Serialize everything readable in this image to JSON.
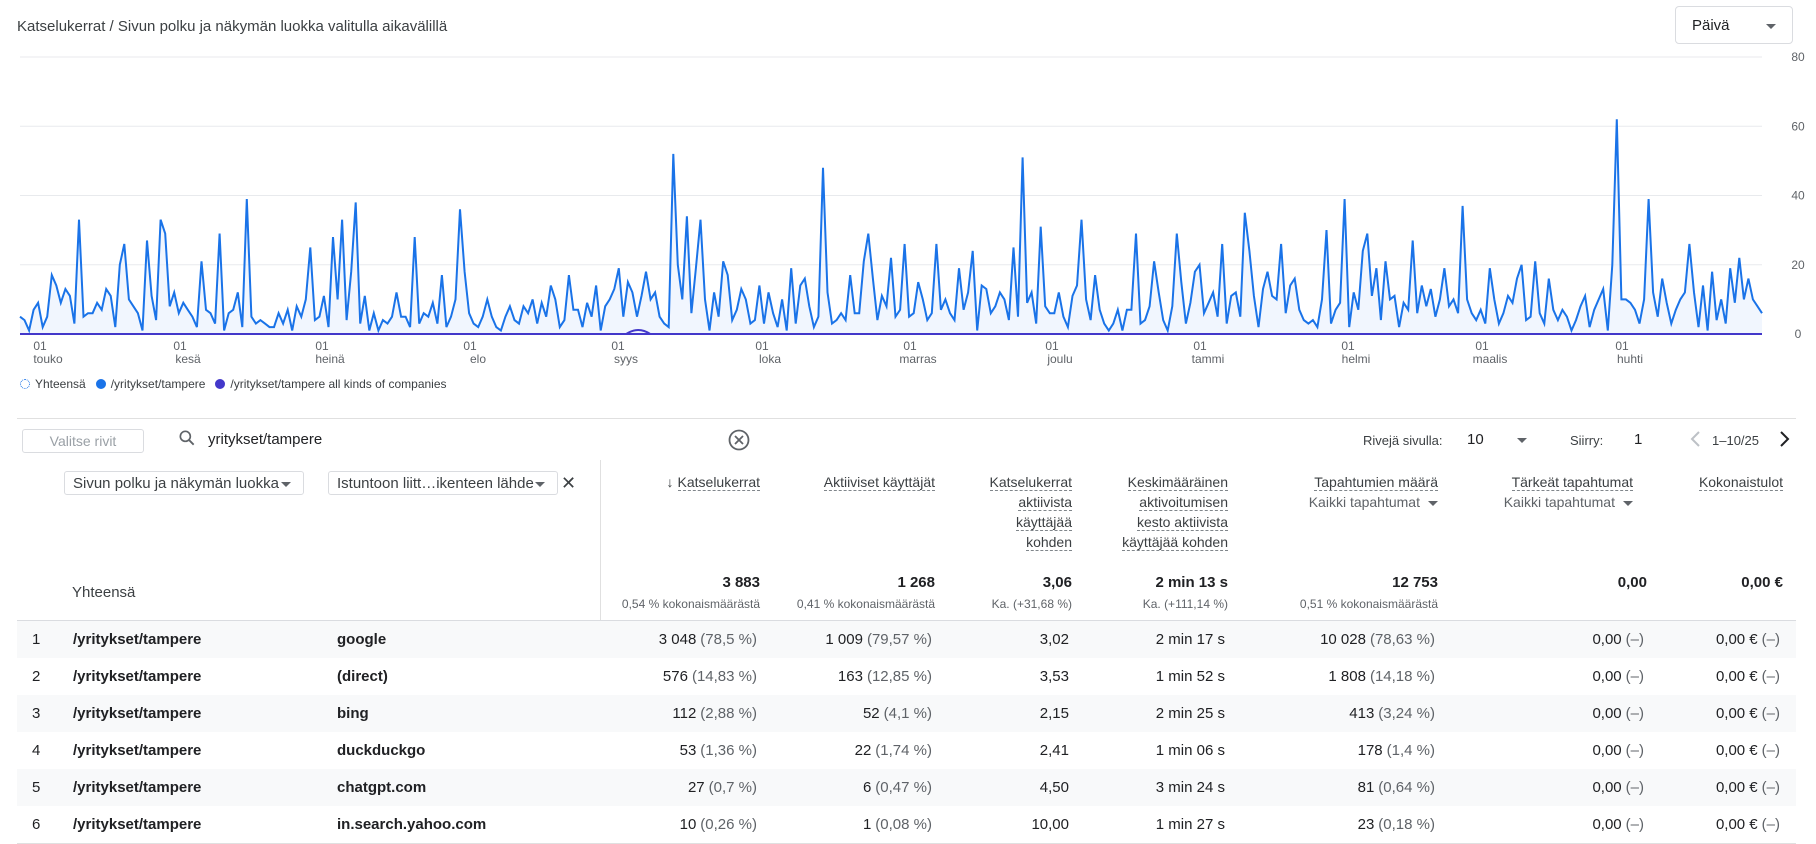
{
  "header": {
    "title": "Katselukerrat / Sivun polku ja näkymän luokka valitulla aikavälillä",
    "period": "Päivä"
  },
  "chart_data": {
    "type": "line",
    "ylim": [
      0,
      80
    ],
    "yticks": [
      "80",
      "60",
      "40",
      "20",
      "0"
    ],
    "xticks": [
      {
        "day": "01",
        "month": "touko"
      },
      {
        "day": "01",
        "month": "kesä"
      },
      {
        "day": "01",
        "month": "heinä"
      },
      {
        "day": "01",
        "month": "elo"
      },
      {
        "day": "01",
        "month": "syys"
      },
      {
        "day": "01",
        "month": "loka"
      },
      {
        "day": "01",
        "month": "marras"
      },
      {
        "day": "01",
        "month": "joulu"
      },
      {
        "day": "01",
        "month": "tammi"
      },
      {
        "day": "01",
        "month": "helmi"
      },
      {
        "day": "01",
        "month": "maalis"
      },
      {
        "day": "01",
        "month": "huhti"
      }
    ],
    "series": [
      {
        "name": "Yhteensä",
        "color": "#1a73e8",
        "values": []
      },
      {
        "name": "/yritykset/tampere",
        "color": "#1a73e8",
        "values": [
          5,
          4,
          1,
          7,
          9,
          2,
          5,
          17,
          14,
          9,
          13,
          11,
          3,
          33,
          5,
          6,
          6,
          9,
          7,
          13,
          11,
          2,
          20,
          26,
          10,
          8,
          6,
          1,
          27,
          11,
          4,
          33,
          29,
          8,
          12,
          6,
          9,
          7,
          5,
          2,
          21,
          7,
          6,
          3,
          29,
          1,
          6,
          7,
          12,
          2,
          39,
          5,
          3,
          4,
          3,
          2,
          2,
          6,
          3,
          7,
          1,
          8,
          5,
          10,
          25,
          4,
          5,
          11,
          2,
          28,
          10,
          33,
          4,
          18,
          38,
          3,
          11,
          1,
          6,
          1,
          4,
          3,
          5,
          12,
          5,
          5,
          2,
          28,
          3,
          6,
          5,
          9,
          3,
          17,
          2,
          5,
          10,
          36,
          18,
          6,
          3,
          2,
          5,
          10,
          5,
          2,
          1,
          5,
          8,
          4,
          3,
          8,
          6,
          10,
          3,
          9,
          5,
          14,
          10,
          2,
          4,
          17,
          7,
          7,
          2,
          9,
          5,
          14,
          1,
          8,
          10,
          13,
          19,
          5,
          15,
          12,
          5,
          11,
          18,
          10,
          12,
          5,
          3,
          2,
          52,
          20,
          10,
          34,
          6,
          19,
          33,
          10,
          1,
          12,
          5,
          21,
          17,
          4,
          7,
          13,
          10,
          3,
          4,
          14,
          3,
          12,
          6,
          2,
          10,
          1,
          19,
          3,
          14,
          16,
          8,
          2,
          5,
          48,
          12,
          3,
          4,
          6,
          4,
          17,
          6,
          6,
          21,
          29,
          16,
          4,
          11,
          8,
          22,
          5,
          7,
          26,
          5,
          6,
          15,
          10,
          4,
          6,
          26,
          7,
          10,
          6,
          4,
          19,
          7,
          12,
          24,
          1,
          14,
          13,
          6,
          8,
          12,
          10,
          4,
          25,
          5,
          51,
          9,
          12,
          3,
          31,
          8,
          6,
          6,
          12,
          5,
          2,
          11,
          14,
          33,
          10,
          4,
          17,
          7,
          3,
          1,
          3,
          7,
          1,
          7,
          7,
          29,
          3,
          4,
          8,
          21,
          12,
          4,
          1,
          8,
          29,
          15,
          3,
          9,
          18,
          20,
          6,
          9,
          12,
          5,
          26,
          3,
          11,
          12,
          5,
          35,
          24,
          11,
          2,
          13,
          18,
          11,
          10,
          26,
          6,
          14,
          16,
          7,
          4,
          3,
          4,
          2,
          10,
          30,
          3,
          7,
          9,
          39,
          2,
          12,
          7,
          24,
          29,
          11,
          19,
          4,
          21,
          10,
          11,
          2,
          9,
          7,
          27,
          6,
          14,
          8,
          13,
          5,
          10,
          19,
          8,
          10,
          6,
          37,
          10,
          6,
          4,
          7,
          3,
          19,
          10,
          3,
          6,
          11,
          9,
          16,
          20,
          4,
          5,
          21,
          6,
          3,
          16,
          7,
          4,
          7,
          5,
          1,
          4,
          8,
          11,
          2,
          7,
          10,
          13,
          1,
          20,
          62,
          10,
          10,
          9,
          7,
          3,
          10,
          39,
          12,
          5,
          16,
          9,
          3,
          7,
          10,
          12,
          26,
          12,
          2,
          14,
          1,
          18,
          4,
          10,
          3,
          19,
          9,
          22,
          10,
          16,
          10,
          8,
          6
        ]
      },
      {
        "name": "/yritykset/tampere all kinds of companies",
        "color": "#4338ca",
        "values": []
      }
    ]
  },
  "legend": [
    "Yhteensä",
    "/yritykset/tampere",
    "/yritykset/tampere all kinds of companies"
  ],
  "toolbar": {
    "select_rows": "Valitse rivit",
    "search_value": "yritykset/tampere",
    "rows_per_page_label": "Rivejä sivulla:",
    "rows_per_page": "10",
    "goto_label": "Siirry:",
    "goto_value": "1",
    "range": "1–10/25"
  },
  "dimensions": {
    "primary": "Sivun polku ja näkymän luokka",
    "secondary": "Istuntoon liitt…ikenteen lähde"
  },
  "columns": {
    "views": "Katselukerrat",
    "active_users": "Aktiiviset käyttäjät",
    "views_per_user": [
      "Katselukerrat",
      "aktiivista",
      "käyttäjää",
      "kohden"
    ],
    "avg_engagement": [
      "Keskimääräinen",
      "aktivoitumisen",
      "kesto aktiivista",
      "käyttäjää kohden"
    ],
    "event_count": "Tapahtumien määrä",
    "event_filter": "Kaikki tapahtumat",
    "key_events": "Tärkeät tapahtumat",
    "key_filter": "Kaikki tapahtumat",
    "revenue": "Kokonaistulot"
  },
  "totals": {
    "label": "Yhteensä",
    "views": "3 883",
    "views_sub": "0,54 % kokonaismäärästä",
    "users": "1 268",
    "users_sub": "0,41 % kokonaismäärästä",
    "vpu": "3,06",
    "vpu_sub": "Ka. (+31,68 %)",
    "eng": "2 min 13 s",
    "eng_sub": "Ka. (+111,14 %)",
    "events": "12 753",
    "events_sub": "0,51 % kokonaismäärästä",
    "key": "0,00",
    "revenue": "0,00 €"
  },
  "rows": [
    {
      "idx": "1",
      "path": "/yritykset/tampere",
      "source": "google",
      "views": "3 048",
      "views_p": "(78,5 %)",
      "users": "1 009",
      "users_p": "(79,57 %)",
      "vpu": "3,02",
      "eng": "2 min 17 s",
      "events": "10 028",
      "events_p": "(78,63 %)",
      "key": "0,00",
      "key_p": "(–)",
      "rev": "0,00 €",
      "rev_p": "(–)"
    },
    {
      "idx": "2",
      "path": "/yritykset/tampere",
      "source": "(direct)",
      "views": "576",
      "views_p": "(14,83 %)",
      "users": "163",
      "users_p": "(12,85 %)",
      "vpu": "3,53",
      "eng": "1 min 52 s",
      "events": "1 808",
      "events_p": "(14,18 %)",
      "key": "0,00",
      "key_p": "(–)",
      "rev": "0,00 €",
      "rev_p": "(–)"
    },
    {
      "idx": "3",
      "path": "/yritykset/tampere",
      "source": "bing",
      "views": "112",
      "views_p": "(2,88 %)",
      "users": "52",
      "users_p": "(4,1 %)",
      "vpu": "2,15",
      "eng": "2 min 25 s",
      "events": "413",
      "events_p": "(3,24 %)",
      "key": "0,00",
      "key_p": "(–)",
      "rev": "0,00 €",
      "rev_p": "(–)"
    },
    {
      "idx": "4",
      "path": "/yritykset/tampere",
      "source": "duckduckgo",
      "views": "53",
      "views_p": "(1,36 %)",
      "users": "22",
      "users_p": "(1,74 %)",
      "vpu": "2,41",
      "eng": "1 min 06 s",
      "events": "178",
      "events_p": "(1,4 %)",
      "key": "0,00",
      "key_p": "(–)",
      "rev": "0,00 €",
      "rev_p": "(–)"
    },
    {
      "idx": "5",
      "path": "/yritykset/tampere",
      "source": "chatgpt.com",
      "views": "27",
      "views_p": "(0,7 %)",
      "users": "6",
      "users_p": "(0,47 %)",
      "vpu": "4,50",
      "eng": "3 min 24 s",
      "events": "81",
      "events_p": "(0,64 %)",
      "key": "0,00",
      "key_p": "(–)",
      "rev": "0,00 €",
      "rev_p": "(–)"
    },
    {
      "idx": "6",
      "path": "/yritykset/tampere",
      "source": "in.search.yahoo.com",
      "views": "10",
      "views_p": "(0,26 %)",
      "users": "1",
      "users_p": "(0,08 %)",
      "vpu": "10,00",
      "eng": "1 min 27 s",
      "events": "23",
      "events_p": "(0,18 %)",
      "key": "0,00",
      "key_p": "(–)",
      "rev": "0,00 €",
      "rev_p": "(–)"
    }
  ]
}
